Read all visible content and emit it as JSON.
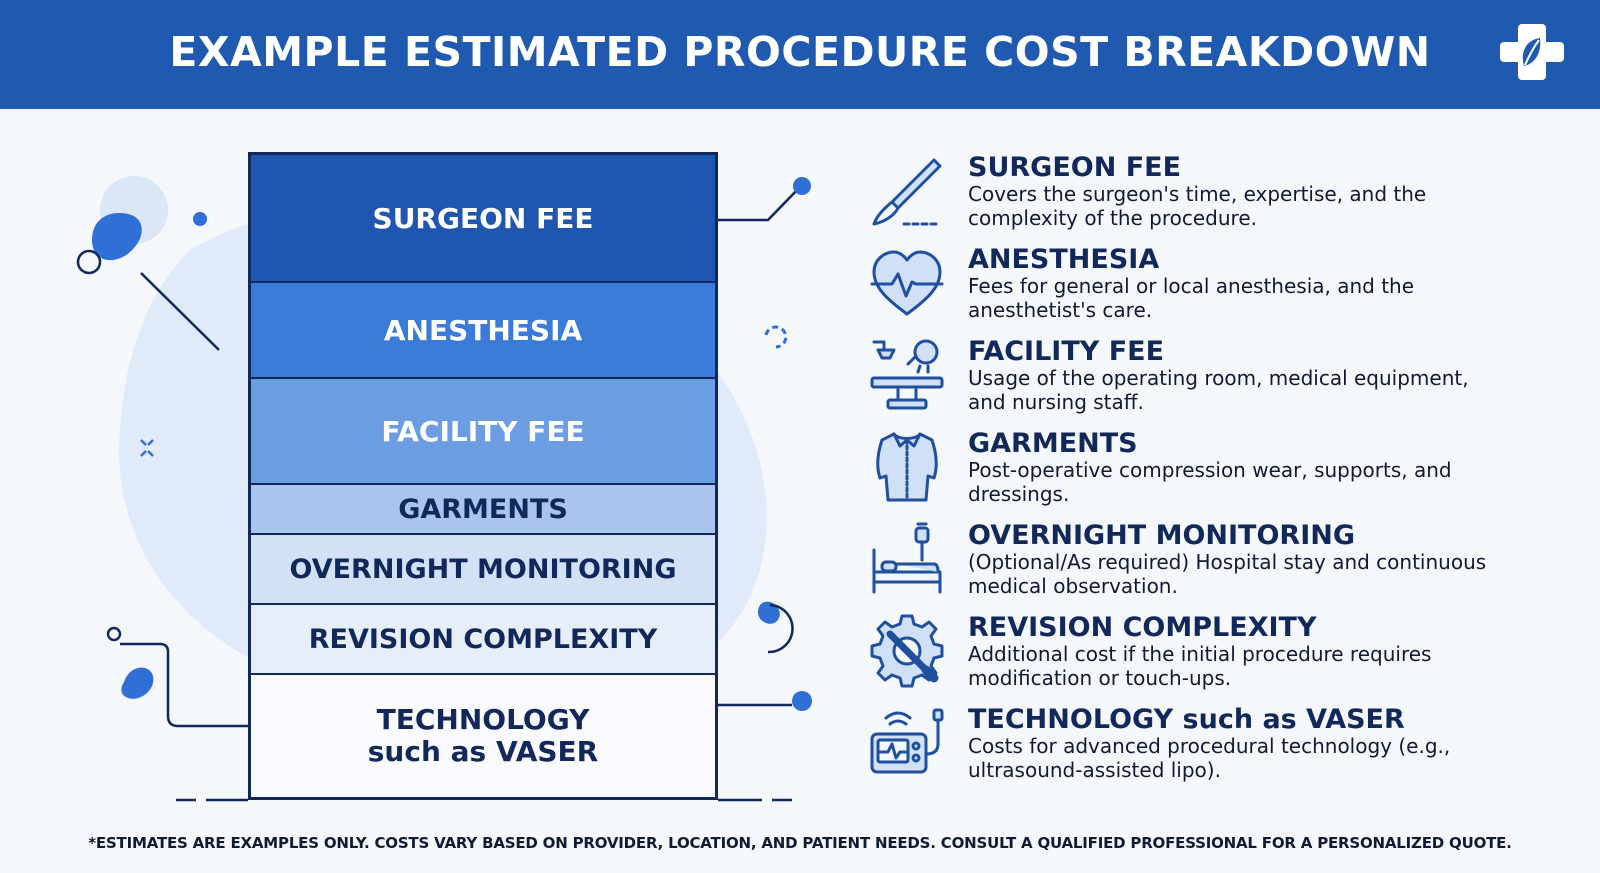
{
  "header": {
    "title": "EXAMPLE ESTIMATED PROCEDURE COST BREAKDOWN",
    "logo_icon": "medical-cross-leaf-icon"
  },
  "stack": {
    "segments": [
      {
        "label": "SURGEON FEE",
        "color": "#1f56b0"
      },
      {
        "label": "ANESTHESIA",
        "color": "#3a7ad8"
      },
      {
        "label": "FACILITY FEE",
        "color": "#6c9de3"
      },
      {
        "label": "GARMENTS",
        "color": "#a9c5ee"
      },
      {
        "label": "OVERNIGHT MONITORING",
        "color": "#d3e1f6"
      },
      {
        "label": "REVISION COMPLEXITY",
        "color": "#e6eefa"
      },
      {
        "label_line1": "TECHNOLOGY",
        "label_line2": "such as VASER",
        "color": "#f8fafd"
      }
    ]
  },
  "items": [
    {
      "icon": "scalpel-icon",
      "title": "SURGEON FEE",
      "description": "Covers the surgeon's time, expertise, and the complexity of the procedure."
    },
    {
      "icon": "heart-pulse-icon",
      "title": "ANESTHESIA",
      "description": "Fees for general or local anesthesia, and the anesthetist's care."
    },
    {
      "icon": "operating-table-icon",
      "title": "FACILITY FEE",
      "description": "Usage of the operating room, medical equipment, and nursing staff."
    },
    {
      "icon": "compression-garment-icon",
      "title": "GARMENTS",
      "description": "Post-operative compression wear, supports, and dressings."
    },
    {
      "icon": "hospital-bed-icon",
      "title": "OVERNIGHT MONITORING",
      "description": "(Optional/As required) Hospital stay and continuous medical observation."
    },
    {
      "icon": "gear-wrench-icon",
      "title": "REVISION COMPLEXITY",
      "description": "Additional cost if the initial procedure requires modification or touch-ups."
    },
    {
      "icon": "ultrasound-device-icon",
      "title": "TECHNOLOGY such as VASER",
      "description": "Costs for advanced procedural technology (e.g., ultrasound-assisted lipo)."
    }
  ],
  "footnote": "*ESTIMATES ARE EXAMPLES ONLY. COSTS VARY BASED ON PROVIDER, LOCATION, AND PATIENT NEEDS. CONSULT A QUALIFIED PROFESSIONAL FOR A PERSONALIZED QUOTE.",
  "colors": {
    "header_bg": "#1f5ab0",
    "navy": "#12275a",
    "accent": "#2f6fd6"
  }
}
